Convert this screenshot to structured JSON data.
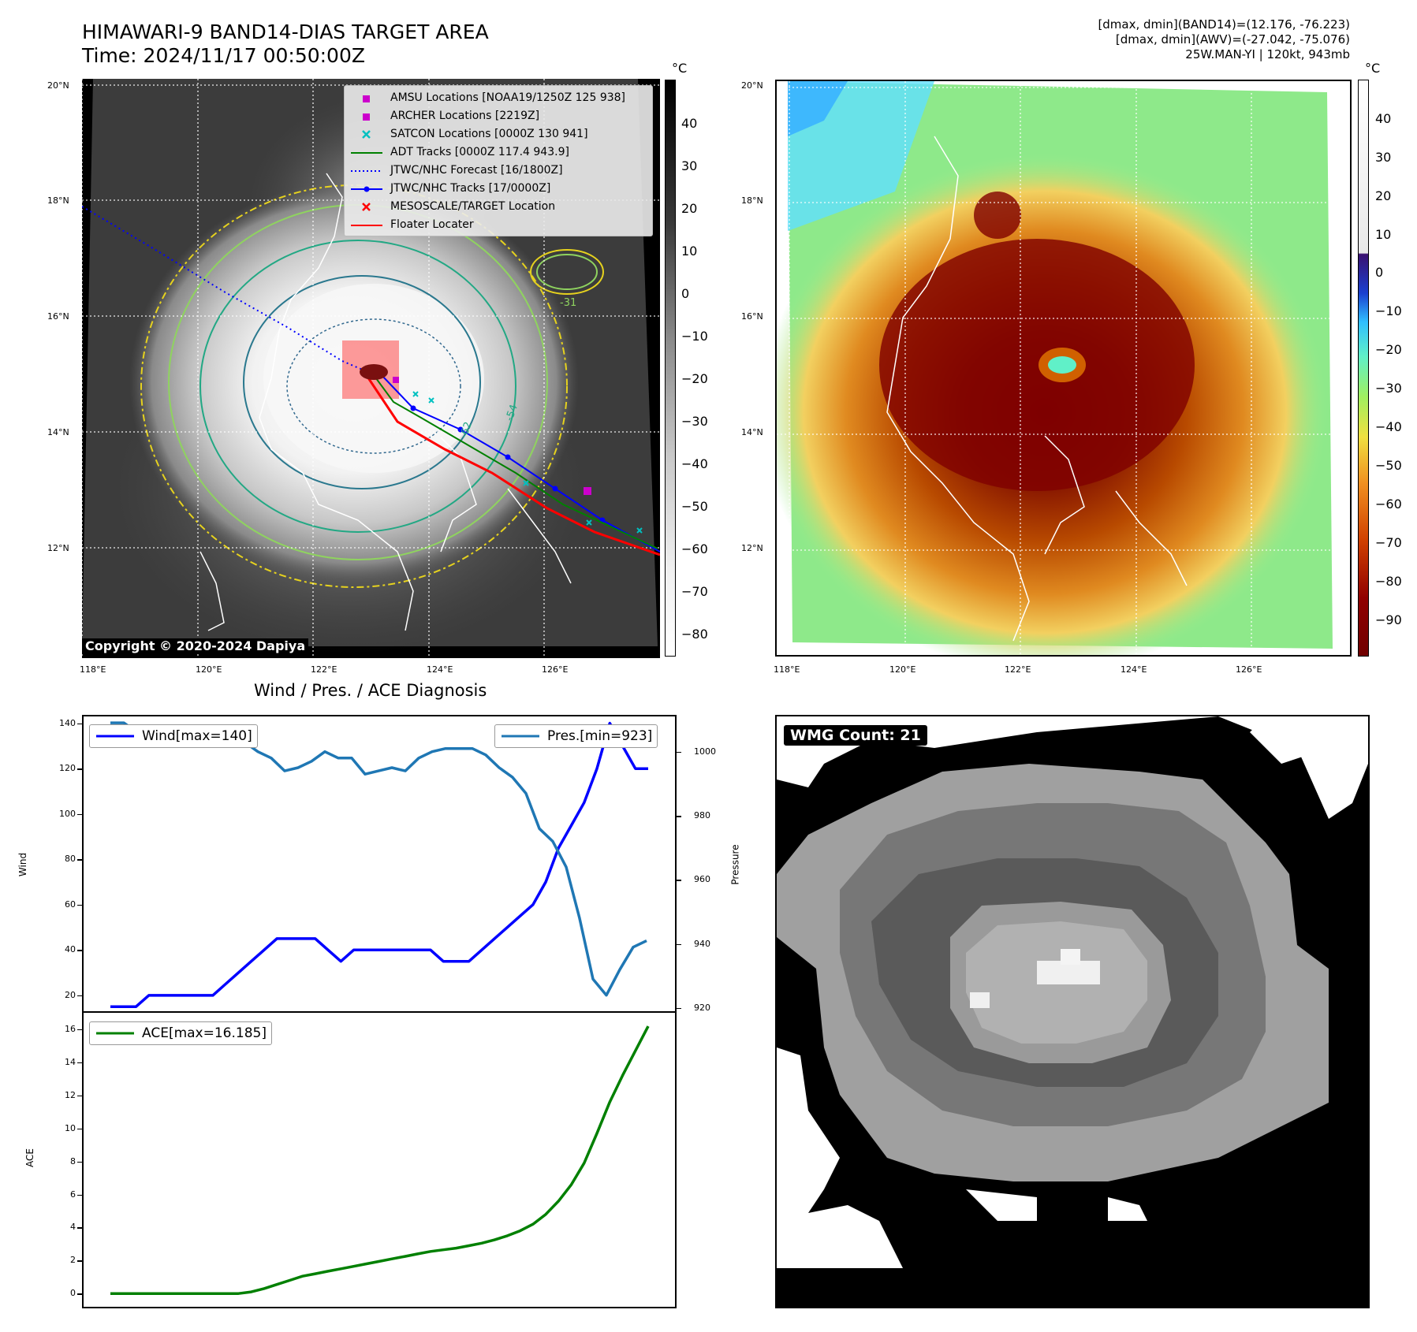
{
  "header": {
    "title_line1": "HIMAWARI-9 BAND14-DIAS TARGET AREA",
    "title_line2": "Time: 2024/11/17 00:50:00Z",
    "info_line1": "[dmax, dmin](BAND14)=(12.176, -76.223)",
    "info_line2": "[dmax, dmin](AWV)=(-27.042, -75.076)",
    "info_line3": "25W.MAN-YI | 120kt, 943mb"
  },
  "map": {
    "lat_labels": [
      "20°N",
      "18°N",
      "16°N",
      "14°N",
      "12°N"
    ],
    "lon_labels": [
      "118°E",
      "120°E",
      "122°E",
      "124°E",
      "126°E"
    ],
    "copyright": "Copyright © 2020-2024 Dapiya",
    "legend": [
      {
        "label": "AMSU Locations [NOAA19/1250Z 125 938]",
        "color": "#cc00cc",
        "symbol": "square"
      },
      {
        "label": "ARCHER Locations [2219Z]",
        "color": "#cc00cc",
        "symbol": "square"
      },
      {
        "label": "SATCON Locations [0000Z 130 941]",
        "color": "#00c0c0",
        "symbol": "x"
      },
      {
        "label": "ADT Tracks [0000Z 117.4 943.9]",
        "color": "#008000",
        "symbol": "line"
      },
      {
        "label": "JTWC/NHC Forecast [16/1800Z]",
        "color": "#0000ff",
        "symbol": "dotted"
      },
      {
        "label": "JTWC/NHC Tracks [17/0000Z]",
        "color": "#0000ff",
        "symbol": "line-dot"
      },
      {
        "label": "MESOSCALE/TARGET Location",
        "color": "#ff0000",
        "symbol": "x"
      },
      {
        "label": "Floater Locater",
        "color": "#ff0000",
        "symbol": "line"
      }
    ],
    "contour_labels": [
      "-54",
      "-62",
      "-31"
    ]
  },
  "colorbar_left": {
    "unit": "°C",
    "ticks": [
      "40",
      "30",
      "20",
      "10",
      "0",
      "−10",
      "−20",
      "−30",
      "−40",
      "−50",
      "−60",
      "−70",
      "−80"
    ]
  },
  "colorbar_right": {
    "unit": "°C",
    "ticks": [
      "40",
      "30",
      "20",
      "10",
      "0",
      "−10",
      "−20",
      "−30",
      "−40",
      "−50",
      "−60",
      "−70",
      "−80",
      "−90"
    ]
  },
  "diagnosis": {
    "title": "Wind / Pres. / ACE Diagnosis",
    "wind_ylabel": "Wind",
    "pres_ylabel": "Pressure",
    "ace_ylabel": "ACE",
    "wind_legend": "Wind[max=140]",
    "pres_legend": "Pres.[min=923]",
    "ace_legend": "ACE[max=16.185]",
    "wind_ticks": [
      "140",
      "120",
      "100",
      "80",
      "60",
      "40",
      "20"
    ],
    "pres_ticks": [
      "1000",
      "980",
      "960",
      "940",
      "920"
    ],
    "ace_ticks": [
      "16",
      "14",
      "12",
      "10",
      "8",
      "6",
      "4",
      "2",
      "0"
    ]
  },
  "wmg": {
    "label": "WMG Count: 21"
  },
  "chart_data": [
    {
      "type": "line",
      "title": "Wind / Pres. / ACE Diagnosis",
      "ylabel": "Wind",
      "ylim": [
        13,
        143
      ],
      "series": [
        {
          "name": "Wind[max=140]",
          "color": "#0000ff",
          "values": [
            15,
            15,
            15,
            20,
            20,
            20,
            20,
            20,
            20,
            25,
            30,
            35,
            40,
            45,
            45,
            45,
            45,
            40,
            35,
            40,
            40,
            40,
            40,
            40,
            40,
            40,
            35,
            35,
            35,
            40,
            45,
            50,
            55,
            60,
            70,
            85,
            95,
            105,
            120,
            140,
            130,
            120,
            120
          ]
        }
      ]
    },
    {
      "type": "line",
      "ylabel": "Pressure",
      "ylim": [
        919,
        1011
      ],
      "series": [
        {
          "name": "Pres.[min=923]",
          "color": "#1f77b4",
          "values": [
            1009,
            1009,
            1006,
            1005,
            1005,
            1005,
            1005,
            1005,
            1004,
            1003,
            1003,
            1000,
            998,
            994,
            995,
            997,
            1000,
            998,
            998,
            993,
            994,
            995,
            994,
            998,
            1000,
            1001,
            1001,
            1001,
            999,
            995,
            992,
            987,
            976,
            972,
            964,
            948,
            929,
            924,
            932,
            939,
            941
          ]
        }
      ]
    },
    {
      "type": "line",
      "ylabel": "ACE",
      "ylim": [
        -0.8,
        17
      ],
      "series": [
        {
          "name": "ACE[max=16.185]",
          "color": "#008000",
          "values": [
            0,
            0,
            0,
            0,
            0,
            0,
            0,
            0,
            0,
            0,
            0,
            0.1,
            0.3,
            0.55,
            0.8,
            1.05,
            1.2,
            1.35,
            1.5,
            1.65,
            1.8,
            1.95,
            2.1,
            2.25,
            2.4,
            2.55,
            2.65,
            2.75,
            2.9,
            3.05,
            3.25,
            3.5,
            3.8,
            4.2,
            4.8,
            5.6,
            6.6,
            7.9,
            9.7,
            11.6,
            13.2,
            14.7,
            16.185
          ]
        }
      ]
    }
  ]
}
